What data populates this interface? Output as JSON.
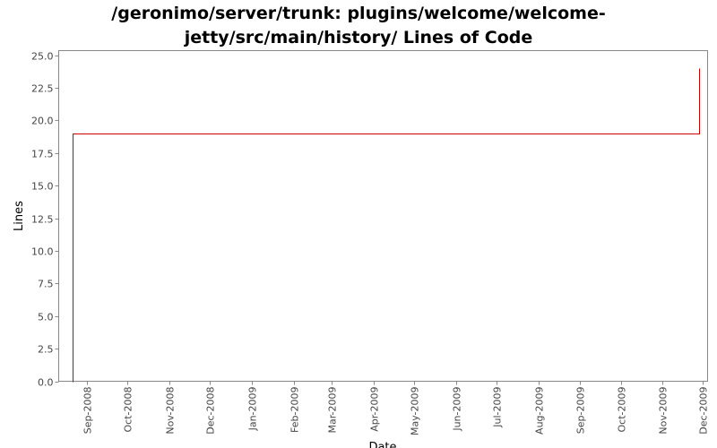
{
  "chart_data": {
    "type": "line",
    "title_lines": [
      "/geronimo/server/trunk: plugins/welcome/welcome-",
      "jetty/src/main/history/ Lines of Code"
    ],
    "xlabel": "Date",
    "ylabel": "Lines",
    "ylim": [
      0,
      25
    ],
    "y_ticks": [
      "0.0",
      "2.5",
      "5.0",
      "7.5",
      "10.0",
      "12.5",
      "15.0",
      "17.5",
      "20.0",
      "22.5",
      "25.0"
    ],
    "x_range": [
      "2008-08-12",
      "2009-12-04"
    ],
    "x_ticks": [
      {
        "date": "2008-09-01",
        "label": "Sep-2008"
      },
      {
        "date": "2008-10-01",
        "label": "Oct-2008"
      },
      {
        "date": "2008-11-01",
        "label": "Nov-2008"
      },
      {
        "date": "2008-12-01",
        "label": "Dec-2008"
      },
      {
        "date": "2009-01-01",
        "label": "Jan-2009"
      },
      {
        "date": "2009-02-01",
        "label": "Feb-2009"
      },
      {
        "date": "2009-03-01",
        "label": "Mar-2009"
      },
      {
        "date": "2009-04-01",
        "label": "Apr-2009"
      },
      {
        "date": "2009-05-01",
        "label": "May-2009"
      },
      {
        "date": "2009-06-01",
        "label": "Jun-2009"
      },
      {
        "date": "2009-07-01",
        "label": "Jul-2009"
      },
      {
        "date": "2009-08-01",
        "label": "Aug-2009"
      },
      {
        "date": "2009-09-01",
        "label": "Sep-2009"
      },
      {
        "date": "2009-10-01",
        "label": "Oct-2009"
      },
      {
        "date": "2009-11-01",
        "label": "Nov-2009"
      },
      {
        "date": "2009-12-01",
        "label": "Dec-2009"
      }
    ],
    "series": [
      {
        "color": "#cc0000",
        "step": true,
        "points": [
          {
            "x": "2008-08-21",
            "y": 0
          },
          {
            "x": "2008-08-21",
            "y": 19
          },
          {
            "x": "2009-11-28",
            "y": 19
          },
          {
            "x": "2009-11-28",
            "y": 24
          }
        ]
      }
    ],
    "grid": false,
    "legend": "none"
  }
}
